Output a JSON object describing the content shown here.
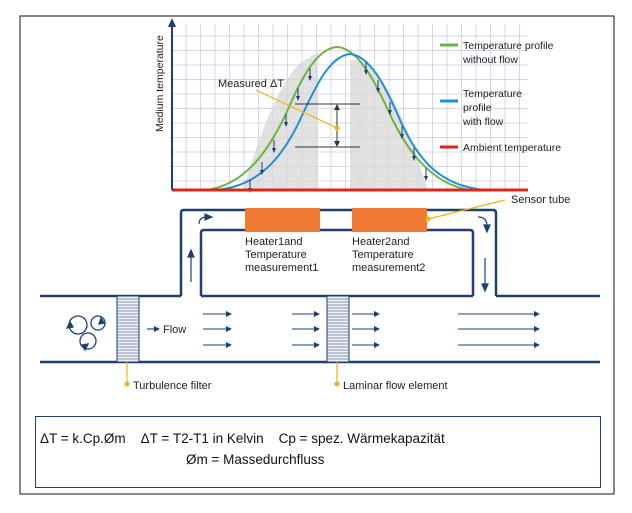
{
  "axis": {
    "ylabel": "Medium temperature"
  },
  "legend": [
    {
      "label_line1": "Temperature profile",
      "label_line2": "without flow",
      "color": "#6db33f"
    },
    {
      "label_line1": "Temperature",
      "label_line2": "profile",
      "label_line3": "with flow",
      "color": "#1f8fd8"
    },
    {
      "label_line1": "Ambient temperature",
      "color": "#e2231a"
    }
  ],
  "annotations": {
    "measured_delta_t": "Measured ΔT",
    "sensor_tube": "Sensor tube",
    "flow": "Flow",
    "turbulence_filter": "Turbulence filter",
    "laminar_flow_element": "Laminar flow element"
  },
  "heaters": [
    {
      "line1": "Heater1and",
      "line2": "Temperature",
      "line3": "measurement1",
      "color": "#f07a33"
    },
    {
      "line1": "Heater2and",
      "line2": "Temperature",
      "line3": "measurement2",
      "color": "#f07a33"
    }
  ],
  "formula": {
    "line1": "ΔT = k.Cp.Øm    ΔT = T2-T1 in Kelvin    Cp = spez. Wärmekapazität",
    "line2": "Øm = Massedurchfluss"
  },
  "colors": {
    "pipe": "#1f3f73",
    "grid": "#c9cde6",
    "accent": "#f0b21a"
  }
}
